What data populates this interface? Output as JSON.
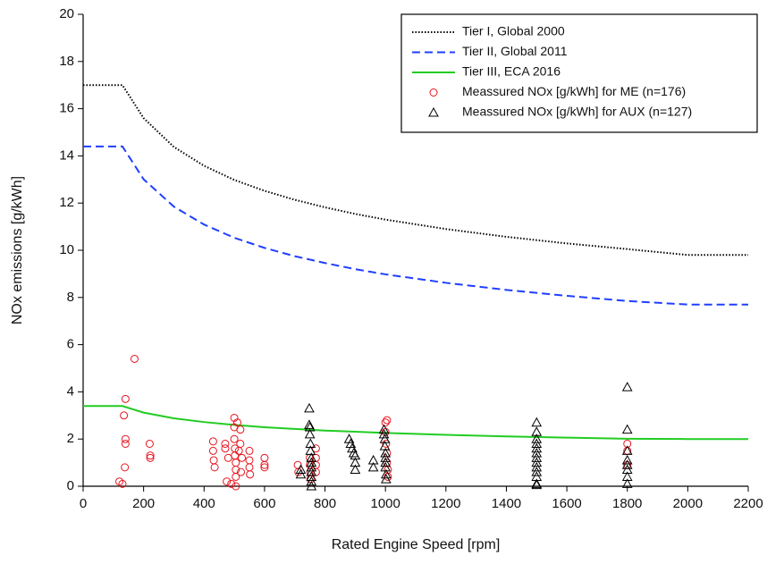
{
  "chart_data": {
    "type": "line",
    "x_label": "Rated Engine Speed [rpm]",
    "y_label": "NOx emissions [g/kWh]",
    "xlim": [
      0,
      2200
    ],
    "xticks": [
      0,
      200,
      400,
      600,
      800,
      1000,
      1200,
      1400,
      1600,
      1800,
      2000,
      2200
    ],
    "ylim": [
      0,
      20
    ],
    "yticks": [
      0,
      2,
      4,
      6,
      8,
      10,
      12,
      14,
      16,
      18,
      20
    ],
    "legend": "upper right",
    "series": [
      {
        "name": "Tier I, Global 2000",
        "type": "line",
        "color": "#000000",
        "dash": "dotted",
        "x": [
          0,
          130,
          200,
          300,
          400,
          500,
          600,
          700,
          800,
          900,
          1000,
          1200,
          1400,
          1600,
          1800,
          2000,
          2200
        ],
        "values": [
          17,
          17,
          15.6,
          14.38,
          13.58,
          12.98,
          12.52,
          12.14,
          11.82,
          11.54,
          11.3,
          10.9,
          10.57,
          10.29,
          10.05,
          9.8,
          9.8
        ]
      },
      {
        "name": "Tier II, Global 2011",
        "type": "line",
        "color": "#1f3fff",
        "dash": "dashed",
        "x": [
          0,
          130,
          200,
          300,
          400,
          500,
          600,
          700,
          800,
          900,
          1000,
          1200,
          1400,
          1600,
          1800,
          2000,
          2200
        ],
        "values": [
          14.4,
          14.4,
          13.01,
          11.85,
          11.09,
          10.53,
          10.1,
          9.75,
          9.46,
          9.2,
          8.98,
          8.62,
          8.32,
          8.07,
          7.85,
          7.7,
          7.7
        ]
      },
      {
        "name": "Tier III, ECA 2016",
        "type": "line",
        "color": "#22cc22",
        "dash": "solid",
        "x": [
          0,
          130,
          200,
          300,
          400,
          500,
          600,
          700,
          800,
          900,
          1000,
          1200,
          1400,
          1600,
          1800,
          2000,
          2200
        ],
        "values": [
          3.4,
          3.4,
          3.12,
          2.88,
          2.72,
          2.6,
          2.5,
          2.43,
          2.36,
          2.31,
          2.26,
          2.18,
          2.11,
          2.06,
          2.01,
          2.0,
          2.0
        ]
      },
      {
        "name": "Meassured NOx [g/kWh] for ME (n=176)",
        "type": "scatter",
        "marker": "circle",
        "color": "#e8141e",
        "x": [
          120,
          130,
          140,
          135,
          140,
          140,
          138,
          170,
          220,
          222,
          222,
          430,
          430,
          432,
          435,
          470,
          470,
          475,
          480,
          490,
          500,
          500,
          500,
          502,
          502,
          505,
          505,
          505,
          505,
          510,
          515,
          520,
          520,
          522,
          525,
          550,
          550,
          550,
          552,
          600,
          600,
          600,
          710,
          712,
          750,
          750,
          752,
          752,
          770,
          770,
          770,
          770,
          1000,
          1005,
          1000,
          1002,
          1005,
          1005,
          1008,
          1008,
          1800,
          1800,
          1800
        ],
        "values": [
          0.2,
          0.1,
          3.7,
          3.0,
          2.0,
          1.8,
          0.8,
          5.4,
          1.8,
          1.3,
          1.2,
          1.9,
          1.5,
          1.1,
          0.8,
          1.6,
          1.8,
          0.2,
          1.2,
          0.1,
          2.9,
          2.5,
          2.0,
          1.6,
          1.3,
          1.0,
          0.7,
          0.4,
          0.0,
          2.7,
          1.5,
          2.4,
          1.8,
          0.6,
          1.2,
          1.5,
          1.1,
          0.8,
          0.5,
          1.2,
          0.9,
          0.8,
          0.9,
          0.6,
          1.2,
          0.9,
          0.6,
          0.3,
          1.6,
          1.2,
          0.9,
          0.6,
          2.7,
          2.8,
          2.3,
          1.8,
          1.4,
          1.0,
          0.7,
          0.4,
          1.8,
          1.5,
          0.9
        ]
      },
      {
        "name": "Meassured NOx [g/kWh] for AUX (n=127)",
        "type": "scatter",
        "marker": "triangle",
        "color": "#000000",
        "x": [
          720,
          720,
          748,
          748,
          750,
          750,
          752,
          752,
          755,
          755,
          755,
          755,
          755,
          755,
          755,
          880,
          885,
          890,
          895,
          900,
          900,
          900,
          960,
          960,
          995,
          995,
          998,
          998,
          1000,
          1000,
          1000,
          1000,
          1002,
          1002,
          1500,
          1500,
          1500,
          1500,
          1500,
          1500,
          1500,
          1500,
          1500,
          1500,
          1500,
          1500,
          1500,
          1800,
          1800,
          1800,
          1800,
          1800,
          1800,
          1800,
          1800
        ],
        "values": [
          0.7,
          0.5,
          3.3,
          2.6,
          2.5,
          2.2,
          1.8,
          1.5,
          1.2,
          1.0,
          0.8,
          0.6,
          0.4,
          0.2,
          0.0,
          2.0,
          1.8,
          1.6,
          1.4,
          1.3,
          1.0,
          0.7,
          1.1,
          0.8,
          2.4,
          2.2,
          2.0,
          1.7,
          1.4,
          1.2,
          1.0,
          0.8,
          0.5,
          0.3,
          2.7,
          2.3,
          2.0,
          1.8,
          1.6,
          1.4,
          1.2,
          1.0,
          0.8,
          0.6,
          0.4,
          0.1,
          0.05,
          4.2,
          2.4,
          1.5,
          1.1,
          0.9,
          0.7,
          0.4,
          0.1
        ]
      }
    ]
  }
}
